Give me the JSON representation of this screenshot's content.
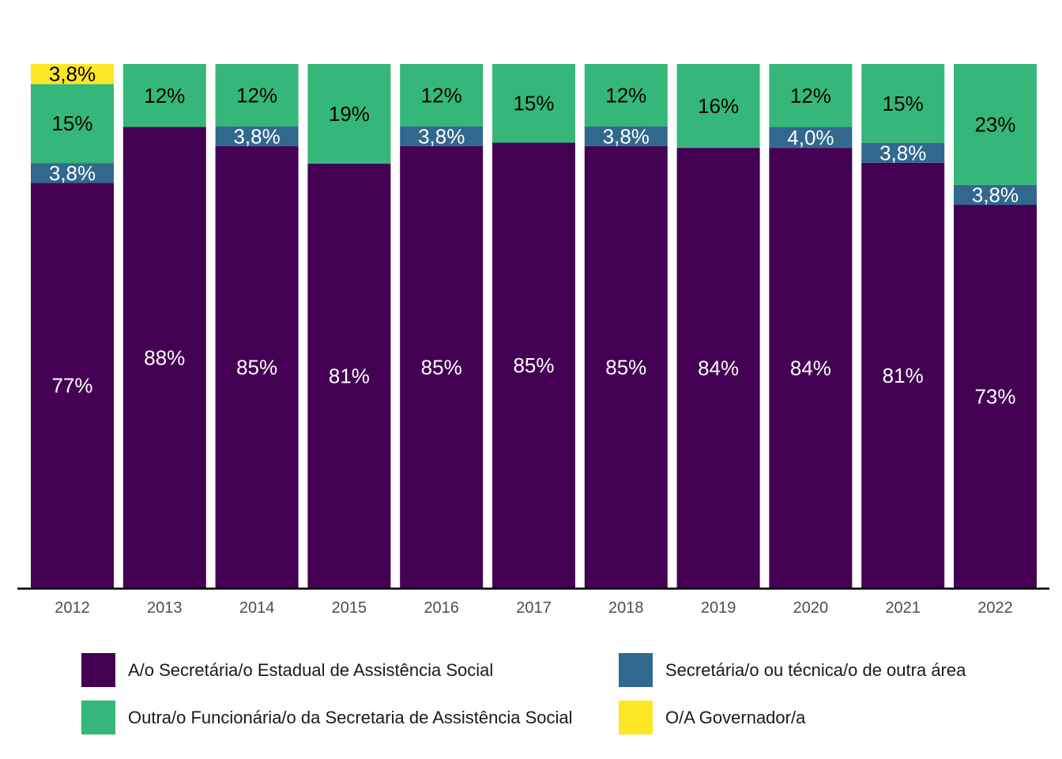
{
  "chart_data": {
    "type": "bar",
    "stacked": true,
    "normalized": true,
    "categories": [
      "2012",
      "2013",
      "2014",
      "2015",
      "2016",
      "2017",
      "2018",
      "2019",
      "2020",
      "2021",
      "2022"
    ],
    "series": [
      {
        "name": "A/o Secretária/o Estadual de Assistência Social",
        "color": "#440154",
        "label_color": "#ffffff",
        "values": [
          77,
          88,
          85,
          81,
          85,
          85,
          85,
          84,
          84,
          81,
          73
        ],
        "labels": [
          "77%",
          "88%",
          "85%",
          "81%",
          "85%",
          "85%",
          "85%",
          "84%",
          "84%",
          "81%",
          "73%"
        ]
      },
      {
        "name": "Secretária/o ou técnica/o de outra área",
        "color": "#31688E",
        "label_color": "#ffffff",
        "values": [
          3.8,
          0,
          3.8,
          0,
          3.8,
          0,
          3.8,
          0,
          4.0,
          3.8,
          3.8
        ],
        "labels": [
          "3,8%",
          "",
          "3,8%",
          "",
          "3,8%",
          "",
          "3,8%",
          "",
          "4,0%",
          "3,8%",
          "3,8%"
        ]
      },
      {
        "name": "Outra/o Funcionária/o da Secretaria de Assistência Social",
        "color": "#35B779",
        "label_color": "#000000",
        "values": [
          15,
          12,
          12,
          19,
          12,
          15,
          12,
          16,
          12,
          15,
          23
        ],
        "labels": [
          "15%",
          "12%",
          "12%",
          "19%",
          "12%",
          "15%",
          "12%",
          "16%",
          "12%",
          "15%",
          "23%"
        ]
      },
      {
        "name": "O/A Governador/a",
        "color": "#FDE725",
        "label_color": "#000000",
        "values": [
          3.8,
          0,
          0,
          0,
          0,
          0,
          0,
          0,
          0,
          0,
          0
        ],
        "labels": [
          "3,8%",
          "",
          "",
          "",
          "",
          "",
          "",
          "",
          "",
          "",
          ""
        ]
      }
    ],
    "ylim": [
      0,
      100
    ],
    "y_axis_visible": false,
    "grid": false,
    "legend_position": "bottom",
    "legend_layout": "two-column"
  },
  "legend": {
    "items": [
      {
        "label": "A/o Secretária/o Estadual de Assistência Social",
        "color": "#440154"
      },
      {
        "label": "Secretária/o ou técnica/o de outra área",
        "color": "#31688E"
      },
      {
        "label": "Outra/o Funcionária/o da Secretaria de Assistência Social",
        "color": "#35B779"
      },
      {
        "label": "O/A Governador/a",
        "color": "#FDE725"
      }
    ]
  }
}
